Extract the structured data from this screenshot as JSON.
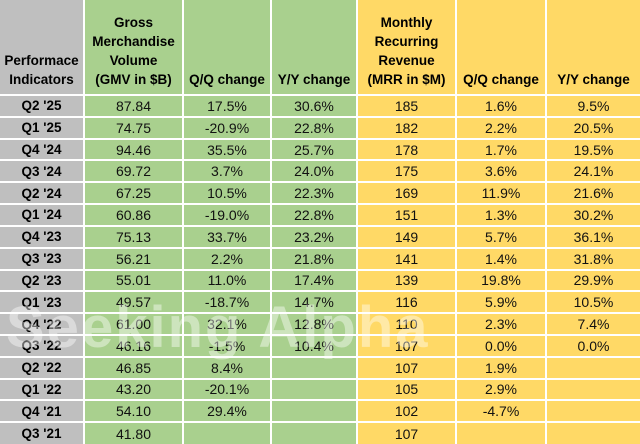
{
  "watermark": "Seeking Alpha",
  "colors": {
    "label_gray": "#bfbfbf",
    "gmv_green": "#a9d08e",
    "mrr_yellow": "#ffd966",
    "grid_white": "#ffffff",
    "text_black": "#000000"
  },
  "header": {
    "corner_lines": [
      "Performace",
      "Indicators"
    ],
    "gmv_lines": [
      "Gross",
      "Merchandise",
      "Volume",
      "(GMV in $B)"
    ],
    "gmv_qq": "Q/Q change",
    "gmv_yy": "Y/Y change",
    "mrr_lines": [
      "Monthly",
      "Recurring",
      "Revenue",
      "(MRR in $M)"
    ],
    "mrr_qq": "Q/Q change",
    "mrr_yy": "Y/Y change"
  },
  "chart_data": {
    "type": "table",
    "columns": [
      "Performace Indicators",
      "Gross Merchandise Volume (GMV in $B)",
      "Q/Q change",
      "Y/Y change",
      "Monthly Recurring Revenue (MRR in $M)",
      "Q/Q change",
      "Y/Y change"
    ],
    "rows": [
      [
        "Q2 '25",
        "87.84",
        "17.5%",
        "30.6%",
        "185",
        "1.6%",
        "9.5%"
      ],
      [
        "Q1 '25",
        "74.75",
        "-20.9%",
        "22.8%",
        "182",
        "2.2%",
        "20.5%"
      ],
      [
        "Q4 '24",
        "94.46",
        "35.5%",
        "25.7%",
        "178",
        "1.7%",
        "19.5%"
      ],
      [
        "Q3 '24",
        "69.72",
        "3.7%",
        "24.0%",
        "175",
        "3.6%",
        "24.1%"
      ],
      [
        "Q2 '24",
        "67.25",
        "10.5%",
        "22.3%",
        "169",
        "11.9%",
        "21.6%"
      ],
      [
        "Q1 '24",
        "60.86",
        "-19.0%",
        "22.8%",
        "151",
        "1.3%",
        "30.2%"
      ],
      [
        "Q4 '23",
        "75.13",
        "33.7%",
        "23.2%",
        "149",
        "5.7%",
        "36.1%"
      ],
      [
        "Q3 '23",
        "56.21",
        "2.2%",
        "21.8%",
        "141",
        "1.4%",
        "31.8%"
      ],
      [
        "Q2 '23",
        "55.01",
        "11.0%",
        "17.4%",
        "139",
        "19.8%",
        "29.9%"
      ],
      [
        "Q1 '23",
        "49.57",
        "-18.7%",
        "14.7%",
        "116",
        "5.9%",
        "10.5%"
      ],
      [
        "Q4 '22",
        "61.00",
        "32.1%",
        "12.8%",
        "110",
        "2.3%",
        "7.4%"
      ],
      [
        "Q3 '22",
        "46.16",
        "-1.5%",
        "10.4%",
        "107",
        "0.0%",
        "0.0%"
      ],
      [
        "Q2 '22",
        "46.85",
        "8.4%",
        "",
        "107",
        "1.9%",
        ""
      ],
      [
        "Q1 '22",
        "43.20",
        "-20.1%",
        "",
        "105",
        "2.9%",
        ""
      ],
      [
        "Q4 '21",
        "54.10",
        "29.4%",
        "",
        "102",
        "-4.7%",
        ""
      ],
      [
        "Q3 '21",
        "41.80",
        "",
        "",
        "107",
        "",
        ""
      ]
    ]
  }
}
